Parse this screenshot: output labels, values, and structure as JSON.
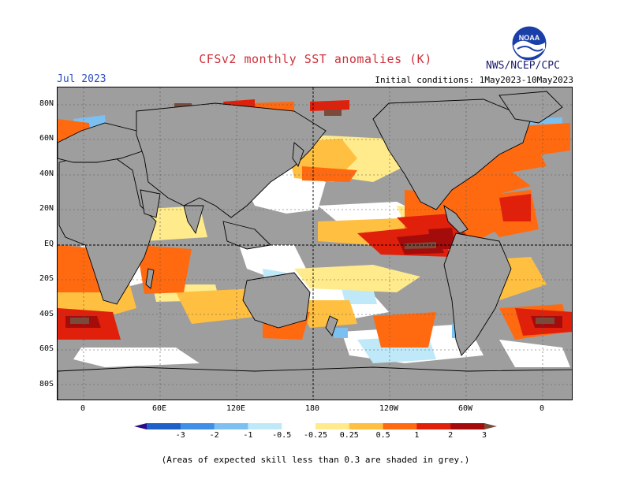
{
  "header": {
    "title": "CFSv2 monthly SST anomalies (K)",
    "month": "Jul 2023",
    "initial_conditions": "Initial conditions: 1May2023-10May2023",
    "org": "NWS/NCEP/CPC",
    "logo_text": "NOAA"
  },
  "axes": {
    "lat_labels": [
      "80N",
      "60N",
      "40N",
      "20N",
      "EQ",
      "20S",
      "40S",
      "60S",
      "80S"
    ],
    "lon_labels": [
      "0",
      "60E",
      "120E",
      "180",
      "120W",
      "60W",
      "0"
    ]
  },
  "colorbar": {
    "labels": [
      "-3",
      "-2",
      "-1",
      "-0.5",
      "-0.25",
      "0.25",
      "0.5",
      "1",
      "2",
      "3"
    ],
    "colors": [
      "#2b0a8c",
      "#1f5fc8",
      "#3f8fe6",
      "#7cc0f2",
      "#bfe9f8",
      "#ffffff",
      "#ffeb8c",
      "#ffbf40",
      "#ff6a10",
      "#e0200a",
      "#a40c0c",
      "#7a4a3a"
    ],
    "below_color": "#2b0a8c",
    "above_color": "#7a4a3a"
  },
  "note": "(Areas of expected skill less than 0.3 are shaded in grey.)",
  "map_colors": {
    "skill_grey": "#9e9e9e",
    "land": "#9e9e9e",
    "coast": "#000000",
    "grid": "#555555"
  }
}
